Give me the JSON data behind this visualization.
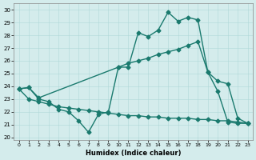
{
  "xlabel": "Humidex (Indice chaleur)",
  "background_color": "#d4ecec",
  "line_color": "#1a7a6e",
  "xlim": [
    -0.5,
    23.5
  ],
  "ylim": [
    19.8,
    30.5
  ],
  "yticks": [
    20,
    21,
    22,
    23,
    24,
    25,
    26,
    27,
    28,
    29,
    30
  ],
  "xticks": [
    0,
    1,
    2,
    3,
    4,
    5,
    6,
    7,
    8,
    9,
    10,
    11,
    12,
    13,
    14,
    15,
    16,
    17,
    18,
    19,
    20,
    21,
    22,
    23
  ],
  "series1_x": [
    0,
    1,
    2,
    3,
    4,
    5,
    6,
    7,
    8,
    9,
    10,
    11,
    12,
    13,
    14,
    15,
    16,
    17,
    18,
    19,
    20,
    21,
    22,
    23
  ],
  "series1_y": [
    23.8,
    23.9,
    23.0,
    22.8,
    22.2,
    22.0,
    21.3,
    20.4,
    21.8,
    22.0,
    25.5,
    25.5,
    28.2,
    27.9,
    28.4,
    29.8,
    29.1,
    29.4,
    29.2,
    25.1,
    23.6,
    21.2,
    21.1,
    21.1
  ],
  "series2_x": [
    0,
    1,
    2,
    10,
    11,
    12,
    13,
    14,
    15,
    16,
    17,
    18,
    19,
    20,
    21,
    22,
    23
  ],
  "series2_y": [
    23.8,
    23.9,
    23.1,
    25.5,
    25.8,
    26.0,
    26.2,
    26.5,
    26.7,
    26.9,
    27.2,
    27.5,
    25.1,
    24.4,
    24.2,
    21.5,
    21.1
  ],
  "series3_x": [
    0,
    1,
    2,
    3,
    4,
    5,
    6,
    7,
    8,
    9,
    10,
    11,
    12,
    13,
    14,
    15,
    16,
    17,
    18,
    19,
    20,
    21,
    22,
    23
  ],
  "series3_y": [
    23.8,
    23.0,
    22.8,
    22.6,
    22.4,
    22.3,
    22.2,
    22.1,
    22.0,
    21.9,
    21.8,
    21.7,
    21.7,
    21.6,
    21.6,
    21.5,
    21.5,
    21.5,
    21.4,
    21.4,
    21.3,
    21.3,
    21.2,
    21.1
  ]
}
